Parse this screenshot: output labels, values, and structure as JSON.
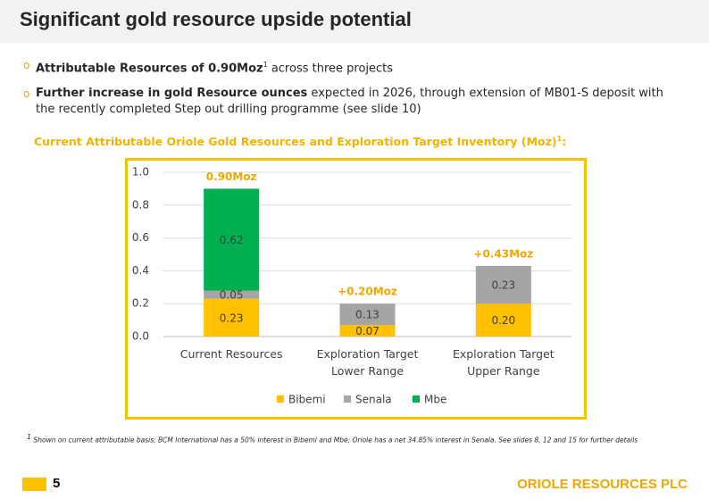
{
  "slide": {
    "title": "Significant gold resource upside potential",
    "bullets": [
      {
        "bold": "Attributable Resources of 0.90Moz",
        "sup": "1",
        "text": " across three projects"
      },
      {
        "bold": "Further increase in gold Resource ounces",
        "text": " expected in 2026, through extension of MB01-S deposit with the recently completed Step out drilling programme (see slide 10)"
      }
    ],
    "chart_heading": "Current Attributable Oriole Gold Resources and Exploration Target Inventory (Moz)",
    "chart_heading_sup": "1",
    "footnote_sup": "1",
    "footnote": "Shown on current attributable basis; BCM International has a 50% interest in Bibemi and Mbe; Oriole has a net 34.85% interest in Senala. See slides 8, 12 and 15 for further details",
    "page_number": "5",
    "company": "ORIOLE RESOURCES PLC"
  },
  "chart_data": {
    "type": "stacked_bar",
    "categories": [
      "Current Resources",
      "Exploration Target Lower Range",
      "Exploration Target Upper Range"
    ],
    "series": [
      {
        "name": "Bibemi",
        "color": "#ffc000",
        "values": [
          0.23,
          0.07,
          0.2
        ],
        "value_labels": [
          "0.23",
          "0.07",
          "0.20"
        ]
      },
      {
        "name": "Senala",
        "color": "#a5a5a5",
        "values": [
          0.05,
          0.13,
          0.23
        ],
        "value_labels": [
          "0.05",
          "0.13",
          "0.23"
        ]
      },
      {
        "name": "Mbe",
        "color": "#00b050",
        "values": [
          0.62,
          null,
          null
        ],
        "value_labels": [
          "0.62",
          null,
          null
        ]
      }
    ],
    "total_labels": [
      "0.90Moz",
      "+0.20Moz",
      "+0.43Moz"
    ],
    "ylim": [
      0,
      1
    ],
    "yticks": [
      {
        "value": 0,
        "label": "0.0"
      },
      0.2,
      0.4,
      0.6,
      0.8,
      {
        "value": 1,
        "label": "1.0"
      }
    ],
    "grid": true,
    "legend": "bottom"
  }
}
